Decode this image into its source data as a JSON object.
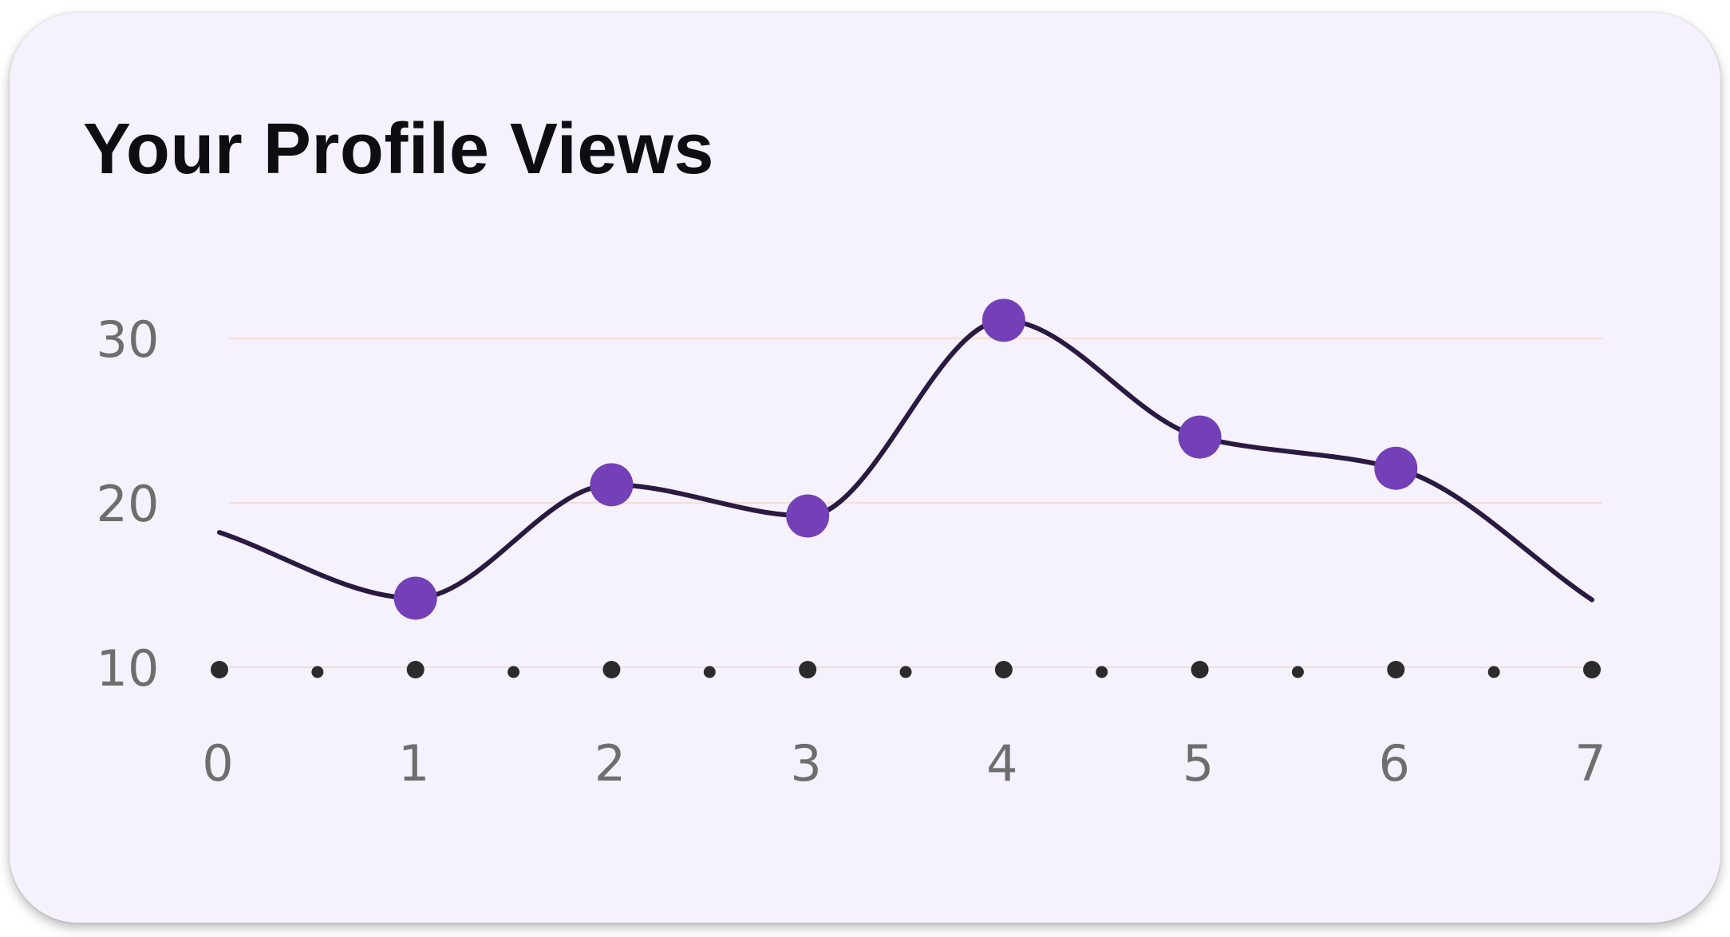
{
  "card": {
    "title": "Your Profile Views"
  },
  "colors": {
    "card_background": "#f5f2fd",
    "line": "#2a1a42",
    "marker": "#7440b8",
    "axis_dot": "#2b2b2b",
    "grid": "#f4ddd8",
    "tick_label": "#6e6e6e",
    "title": "#0d0d12"
  },
  "chart_data": {
    "type": "line",
    "title": "Your Profile Views",
    "xlabel": "",
    "ylabel": "",
    "xlim": [
      0,
      7
    ],
    "ylim": [
      10,
      30
    ],
    "x_ticks": [
      0,
      1,
      2,
      3,
      4,
      5,
      6,
      7
    ],
    "x_tick_labels": [
      "0",
      "1",
      "2",
      "3",
      "4",
      "5",
      "6",
      "7"
    ],
    "y_ticks": [
      10,
      20,
      30
    ],
    "y_tick_labels": [
      "10",
      "20",
      "30"
    ],
    "grid": "horizontal",
    "series": [
      {
        "x": [
          0,
          1,
          2,
          3,
          4,
          5,
          6,
          7
        ],
        "values": [
          18.2,
          14.2,
          21.1,
          19.2,
          31.1,
          24.0,
          22.1,
          14.1
        ],
        "markers": [
          false,
          true,
          true,
          true,
          true,
          true,
          true,
          false
        ]
      }
    ]
  }
}
